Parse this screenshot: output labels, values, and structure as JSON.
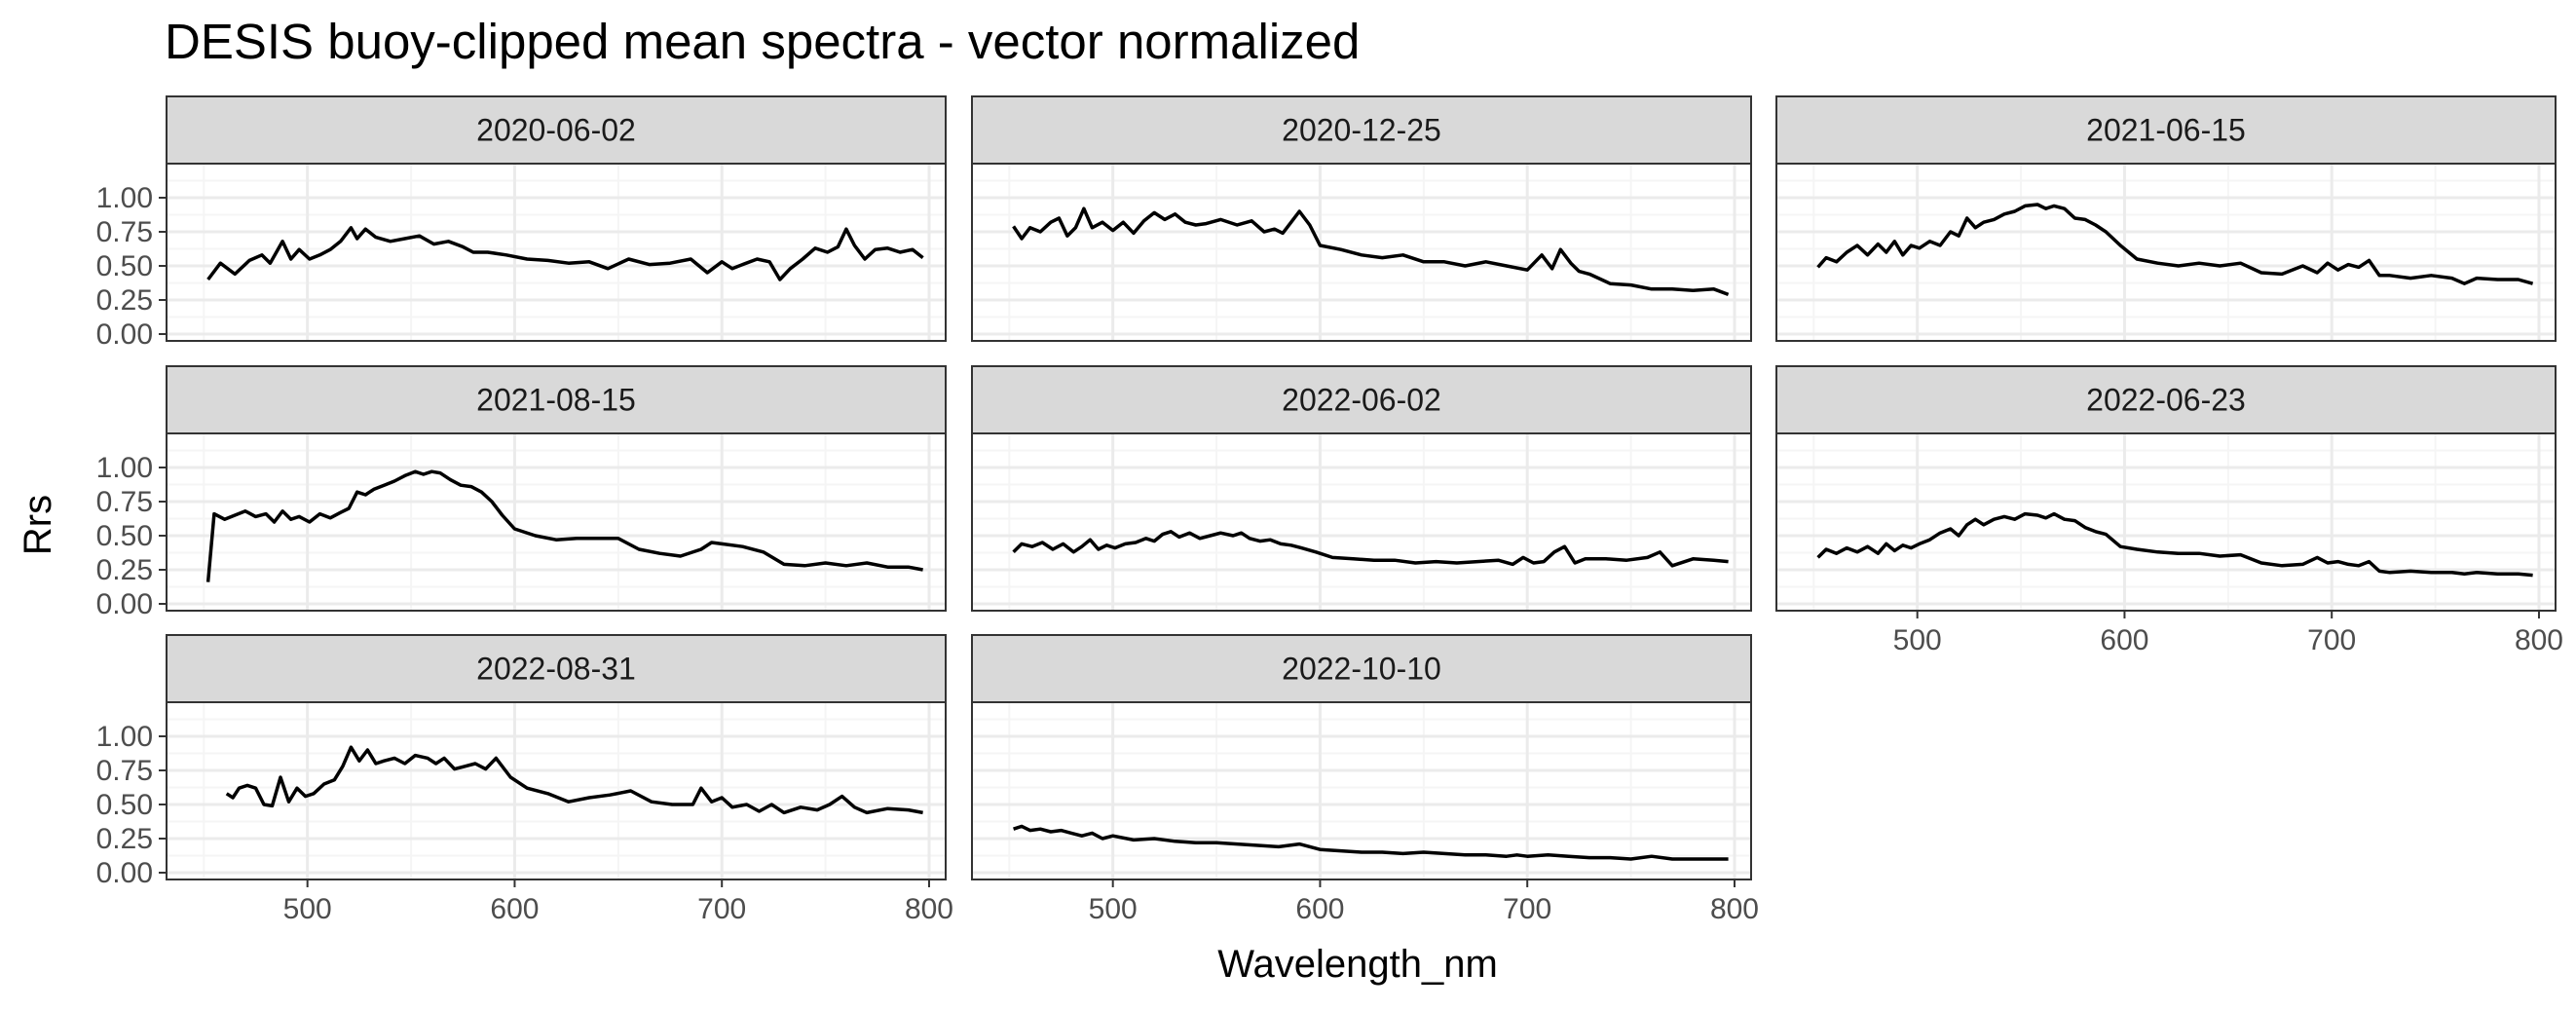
{
  "chart_data": {
    "type": "line",
    "title": "DESIS buoy-clipped mean spectra - vector normalized",
    "xlabel": "Wavelength_nm",
    "ylabel": "Rrs",
    "xlim": [
      432,
      808
    ],
    "ylim": [
      -0.05,
      1.25
    ],
    "x_ticks": [
      500,
      600,
      700,
      800
    ],
    "y_ticks": [
      0.0,
      0.25,
      0.5,
      0.75,
      1.0
    ],
    "x_tick_labels": [
      "500",
      "600",
      "700",
      "800"
    ],
    "y_tick_labels": [
      "0.00",
      "0.25",
      "0.50",
      "0.75",
      "1.00"
    ],
    "grid": true,
    "facet_layout": "3 columns x 3 rows, free panels, shared axes",
    "series": [
      {
        "name": "2020-06-02",
        "x": [
          452,
          458,
          465,
          472,
          478,
          482,
          488,
          492,
          496,
          501,
          506,
          511,
          516,
          521,
          524,
          528,
          533,
          540,
          547,
          554,
          561,
          568,
          575,
          580,
          587,
          596,
          606,
          616,
          626,
          636,
          645,
          655,
          665,
          675,
          685,
          693,
          700,
          705,
          710,
          717,
          723,
          728,
          733,
          739,
          745,
          751,
          756,
          760,
          764,
          769,
          774,
          780,
          786,
          792,
          797
        ],
        "y": [
          0.4,
          0.52,
          0.44,
          0.54,
          0.58,
          0.52,
          0.68,
          0.55,
          0.62,
          0.55,
          0.58,
          0.62,
          0.68,
          0.78,
          0.7,
          0.77,
          0.71,
          0.68,
          0.7,
          0.72,
          0.66,
          0.68,
          0.64,
          0.6,
          0.6,
          0.58,
          0.55,
          0.54,
          0.52,
          0.53,
          0.48,
          0.55,
          0.51,
          0.52,
          0.55,
          0.45,
          0.53,
          0.48,
          0.51,
          0.55,
          0.53,
          0.4,
          0.48,
          0.55,
          0.63,
          0.6,
          0.64,
          0.77,
          0.65,
          0.55,
          0.62,
          0.63,
          0.6,
          0.62,
          0.56
        ]
      },
      {
        "name": "2020-12-25",
        "x": [
          452,
          456,
          460,
          465,
          470,
          474,
          478,
          482,
          486,
          490,
          495,
          500,
          505,
          510,
          515,
          520,
          525,
          530,
          535,
          540,
          545,
          552,
          560,
          567,
          573,
          578,
          582,
          586,
          590,
          595,
          600,
          610,
          620,
          630,
          640,
          650,
          660,
          670,
          680,
          690,
          700,
          707,
          712,
          716,
          721,
          725,
          730,
          740,
          750,
          760,
          770,
          780,
          790,
          797
        ],
        "y": [
          0.79,
          0.7,
          0.78,
          0.75,
          0.82,
          0.85,
          0.72,
          0.78,
          0.92,
          0.78,
          0.82,
          0.76,
          0.82,
          0.74,
          0.83,
          0.89,
          0.84,
          0.88,
          0.82,
          0.8,
          0.81,
          0.84,
          0.8,
          0.83,
          0.75,
          0.77,
          0.74,
          0.82,
          0.9,
          0.8,
          0.65,
          0.62,
          0.58,
          0.56,
          0.58,
          0.53,
          0.53,
          0.5,
          0.53,
          0.5,
          0.47,
          0.58,
          0.48,
          0.62,
          0.52,
          0.46,
          0.44,
          0.37,
          0.36,
          0.33,
          0.33,
          0.32,
          0.33,
          0.29
        ]
      },
      {
        "name": "2021-06-15",
        "x": [
          452,
          456,
          461,
          466,
          471,
          476,
          481,
          485,
          489,
          493,
          497,
          501,
          506,
          511,
          516,
          520,
          524,
          528,
          532,
          537,
          542,
          547,
          552,
          558,
          562,
          566,
          571,
          576,
          581,
          586,
          591,
          598,
          606,
          616,
          626,
          636,
          646,
          656,
          666,
          676,
          686,
          693,
          698,
          703,
          708,
          713,
          718,
          723,
          728,
          738,
          748,
          758,
          764,
          770,
          780,
          790,
          797
        ],
        "y": [
          0.49,
          0.56,
          0.53,
          0.6,
          0.65,
          0.58,
          0.66,
          0.6,
          0.68,
          0.58,
          0.65,
          0.63,
          0.68,
          0.65,
          0.75,
          0.72,
          0.85,
          0.78,
          0.82,
          0.84,
          0.88,
          0.9,
          0.94,
          0.95,
          0.92,
          0.94,
          0.92,
          0.85,
          0.84,
          0.8,
          0.75,
          0.65,
          0.55,
          0.52,
          0.5,
          0.52,
          0.5,
          0.52,
          0.45,
          0.44,
          0.5,
          0.45,
          0.52,
          0.47,
          0.51,
          0.49,
          0.54,
          0.43,
          0.43,
          0.41,
          0.43,
          0.41,
          0.37,
          0.41,
          0.4,
          0.4,
          0.37
        ]
      },
      {
        "name": "2021-08-15",
        "x": [
          452,
          455,
          460,
          465,
          470,
          475,
          480,
          484,
          488,
          492,
          496,
          501,
          506,
          511,
          516,
          520,
          524,
          528,
          532,
          537,
          542,
          547,
          552,
          556,
          560,
          564,
          569,
          574,
          579,
          584,
          589,
          594,
          600,
          610,
          620,
          630,
          640,
          650,
          660,
          670,
          680,
          690,
          695,
          700,
          710,
          720,
          730,
          740,
          750,
          760,
          770,
          780,
          790,
          797
        ],
        "y": [
          0.16,
          0.66,
          0.62,
          0.65,
          0.68,
          0.64,
          0.66,
          0.6,
          0.68,
          0.62,
          0.64,
          0.6,
          0.66,
          0.63,
          0.67,
          0.7,
          0.82,
          0.8,
          0.84,
          0.87,
          0.9,
          0.94,
          0.97,
          0.95,
          0.97,
          0.96,
          0.91,
          0.87,
          0.86,
          0.82,
          0.75,
          0.65,
          0.55,
          0.5,
          0.47,
          0.48,
          0.48,
          0.48,
          0.4,
          0.37,
          0.35,
          0.4,
          0.45,
          0.44,
          0.42,
          0.38,
          0.29,
          0.28,
          0.3,
          0.28,
          0.3,
          0.27,
          0.27,
          0.25
        ]
      },
      {
        "name": "2022-06-02",
        "x": [
          452,
          456,
          461,
          466,
          471,
          476,
          481,
          485,
          489,
          493,
          497,
          501,
          506,
          511,
          516,
          520,
          524,
          528,
          532,
          537,
          542,
          547,
          552,
          558,
          562,
          566,
          571,
          576,
          581,
          586,
          591,
          598,
          606,
          616,
          626,
          636,
          646,
          656,
          666,
          676,
          686,
          693,
          698,
          703,
          708,
          713,
          718,
          723,
          728,
          738,
          748,
          758,
          764,
          770,
          780,
          790,
          797
        ],
        "y": [
          0.38,
          0.44,
          0.42,
          0.45,
          0.4,
          0.44,
          0.38,
          0.42,
          0.47,
          0.4,
          0.43,
          0.41,
          0.44,
          0.45,
          0.48,
          0.46,
          0.51,
          0.53,
          0.49,
          0.52,
          0.48,
          0.5,
          0.52,
          0.5,
          0.52,
          0.48,
          0.46,
          0.47,
          0.44,
          0.43,
          0.41,
          0.38,
          0.34,
          0.33,
          0.32,
          0.32,
          0.3,
          0.31,
          0.3,
          0.31,
          0.32,
          0.29,
          0.34,
          0.3,
          0.31,
          0.38,
          0.42,
          0.3,
          0.33,
          0.33,
          0.32,
          0.34,
          0.38,
          0.28,
          0.33,
          0.32,
          0.31
        ]
      },
      {
        "name": "2022-06-23",
        "x": [
          452,
          456,
          461,
          466,
          471,
          476,
          481,
          485,
          489,
          493,
          497,
          501,
          506,
          511,
          516,
          520,
          524,
          528,
          532,
          537,
          542,
          547,
          552,
          558,
          562,
          566,
          571,
          576,
          581,
          586,
          591,
          598,
          606,
          616,
          626,
          636,
          646,
          656,
          666,
          676,
          686,
          693,
          698,
          703,
          708,
          713,
          718,
          723,
          728,
          738,
          748,
          758,
          764,
          770,
          780,
          790,
          797
        ],
        "y": [
          0.34,
          0.4,
          0.37,
          0.41,
          0.38,
          0.42,
          0.37,
          0.44,
          0.39,
          0.43,
          0.41,
          0.44,
          0.47,
          0.52,
          0.55,
          0.5,
          0.58,
          0.62,
          0.58,
          0.62,
          0.64,
          0.62,
          0.66,
          0.65,
          0.63,
          0.66,
          0.62,
          0.61,
          0.56,
          0.53,
          0.51,
          0.42,
          0.4,
          0.38,
          0.37,
          0.37,
          0.35,
          0.36,
          0.3,
          0.28,
          0.29,
          0.34,
          0.3,
          0.31,
          0.29,
          0.28,
          0.31,
          0.24,
          0.23,
          0.24,
          0.23,
          0.23,
          0.22,
          0.23,
          0.22,
          0.22,
          0.21
        ]
      },
      {
        "name": "2022-08-31",
        "x": [
          461,
          464,
          467,
          471,
          475,
          479,
          483,
          487,
          491,
          495,
          499,
          503,
          508,
          513,
          517,
          521,
          525,
          529,
          533,
          537,
          542,
          547,
          552,
          558,
          562,
          566,
          571,
          576,
          581,
          586,
          591,
          598,
          606,
          616,
          626,
          636,
          646,
          656,
          666,
          676,
          686,
          690,
          695,
          700,
          705,
          712,
          718,
          724,
          730,
          738,
          746,
          752,
          758,
          764,
          770,
          780,
          790,
          797
        ],
        "y": [
          0.58,
          0.55,
          0.62,
          0.64,
          0.62,
          0.5,
          0.49,
          0.7,
          0.52,
          0.62,
          0.56,
          0.58,
          0.65,
          0.68,
          0.78,
          0.92,
          0.82,
          0.9,
          0.8,
          0.82,
          0.84,
          0.8,
          0.86,
          0.84,
          0.8,
          0.84,
          0.76,
          0.78,
          0.8,
          0.76,
          0.84,
          0.7,
          0.62,
          0.58,
          0.52,
          0.55,
          0.57,
          0.6,
          0.52,
          0.5,
          0.5,
          0.62,
          0.52,
          0.55,
          0.48,
          0.5,
          0.45,
          0.5,
          0.44,
          0.48,
          0.46,
          0.5,
          0.56,
          0.48,
          0.44,
          0.47,
          0.46,
          0.44
        ]
      },
      {
        "name": "2022-10-10",
        "x": [
          452,
          456,
          460,
          465,
          470,
          475,
          480,
          485,
          490,
          495,
          500,
          510,
          520,
          530,
          540,
          550,
          560,
          570,
          580,
          590,
          600,
          610,
          620,
          630,
          640,
          650,
          660,
          670,
          680,
          690,
          695,
          700,
          710,
          720,
          730,
          740,
          750,
          760,
          770,
          780,
          790,
          797
        ],
        "y": [
          0.32,
          0.34,
          0.31,
          0.32,
          0.3,
          0.31,
          0.29,
          0.27,
          0.29,
          0.25,
          0.27,
          0.24,
          0.25,
          0.23,
          0.22,
          0.22,
          0.21,
          0.2,
          0.19,
          0.21,
          0.17,
          0.16,
          0.15,
          0.15,
          0.14,
          0.15,
          0.14,
          0.13,
          0.13,
          0.12,
          0.13,
          0.12,
          0.13,
          0.12,
          0.11,
          0.11,
          0.1,
          0.12,
          0.1,
          0.1,
          0.1,
          0.1
        ]
      }
    ]
  },
  "colors": {
    "line": "#000000",
    "strip_fill": "#d9d9d9",
    "panel_border": "#333333",
    "grid_major": "#ebebeb",
    "grid_minor": "#f5f5f5",
    "tick_text": "#4d4d4d"
  }
}
